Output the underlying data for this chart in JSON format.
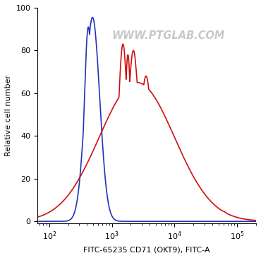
{
  "xlabel": "FITC-65235 CD71 (OKT9), FITC-A",
  "ylabel": "Relative cell number",
  "xlim_log": [
    65,
    200000
  ],
  "ylim": [
    -1,
    100
  ],
  "yticks": [
    0,
    20,
    40,
    60,
    80,
    100
  ],
  "blue_color": "#2233BB",
  "red_color": "#CC1111",
  "bg_color": "#ffffff",
  "watermark": "WWW.PTGLAB.COM",
  "watermark_color": "#c8c8c8"
}
